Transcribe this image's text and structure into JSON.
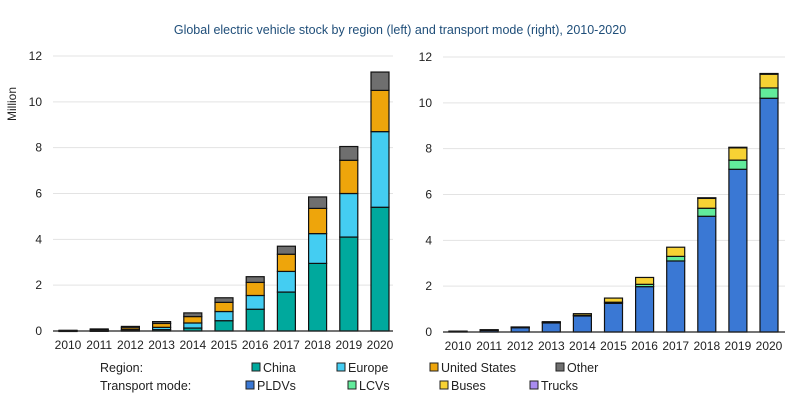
{
  "chart_data": [
    {
      "type": "bar",
      "stacked": true,
      "title": "Global electric vehicle stock by region (left) and transport mode (right), 2010-2020",
      "ylabel": "Million",
      "ylim": [
        0,
        12
      ],
      "yticks": [
        "0",
        "2",
        "4",
        "6",
        "8",
        "10",
        "12"
      ],
      "grid": true,
      "categories": [
        "2010",
        "2011",
        "2012",
        "2013",
        "2014",
        "2015",
        "2016",
        "2017",
        "2018",
        "2019",
        "2020"
      ],
      "legend_label": "Region:",
      "series": [
        {
          "name": "China",
          "color": "#00a99d",
          "values": [
            0.005,
            0.01,
            0.02,
            0.06,
            0.13,
            0.45,
            0.95,
            1.7,
            2.95,
            4.1,
            5.4
          ]
        },
        {
          "name": "Europe",
          "color": "#44cdf2",
          "values": [
            0.01,
            0.02,
            0.04,
            0.1,
            0.22,
            0.4,
            0.6,
            0.9,
            1.3,
            1.9,
            3.3
          ]
        },
        {
          "name": "United States",
          "color": "#eea50b",
          "values": [
            0.005,
            0.02,
            0.08,
            0.17,
            0.28,
            0.4,
            0.57,
            0.75,
            1.1,
            1.45,
            1.8
          ]
        },
        {
          "name": "Other",
          "color": "#6f6f6f",
          "values": [
            0.01,
            0.04,
            0.06,
            0.08,
            0.16,
            0.2,
            0.25,
            0.35,
            0.5,
            0.6,
            0.8
          ]
        }
      ]
    },
    {
      "type": "bar",
      "stacked": true,
      "ylim": [
        0,
        12
      ],
      "yticks": [
        "0",
        "2",
        "4",
        "6",
        "8",
        "10",
        "12"
      ],
      "grid": true,
      "categories": [
        "2010",
        "2011",
        "2012",
        "2013",
        "2014",
        "2015",
        "2016",
        "2017",
        "2018",
        "2019",
        "2020"
      ],
      "legend_label": "Transport mode:",
      "series": [
        {
          "name": "PLDVs",
          "color": "#3a78d4",
          "values": [
            0.03,
            0.08,
            0.2,
            0.4,
            0.7,
            1.25,
            1.98,
            3.1,
            5.05,
            7.1,
            10.2
          ]
        },
        {
          "name": "LCVs",
          "color": "#62eb9b",
          "values": [
            0.002,
            0.01,
            0.01,
            0.02,
            0.03,
            0.05,
            0.1,
            0.2,
            0.35,
            0.4,
            0.45
          ]
        },
        {
          "name": "Buses",
          "color": "#f7d234",
          "values": [
            0.002,
            0.01,
            0.01,
            0.03,
            0.07,
            0.18,
            0.3,
            0.4,
            0.45,
            0.55,
            0.6
          ]
        },
        {
          "name": "Trucks",
          "color": "#a98cf0",
          "values": [
            0,
            0,
            0,
            0,
            0,
            0,
            0,
            0,
            0.005,
            0.01,
            0.03
          ]
        }
      ]
    }
  ]
}
